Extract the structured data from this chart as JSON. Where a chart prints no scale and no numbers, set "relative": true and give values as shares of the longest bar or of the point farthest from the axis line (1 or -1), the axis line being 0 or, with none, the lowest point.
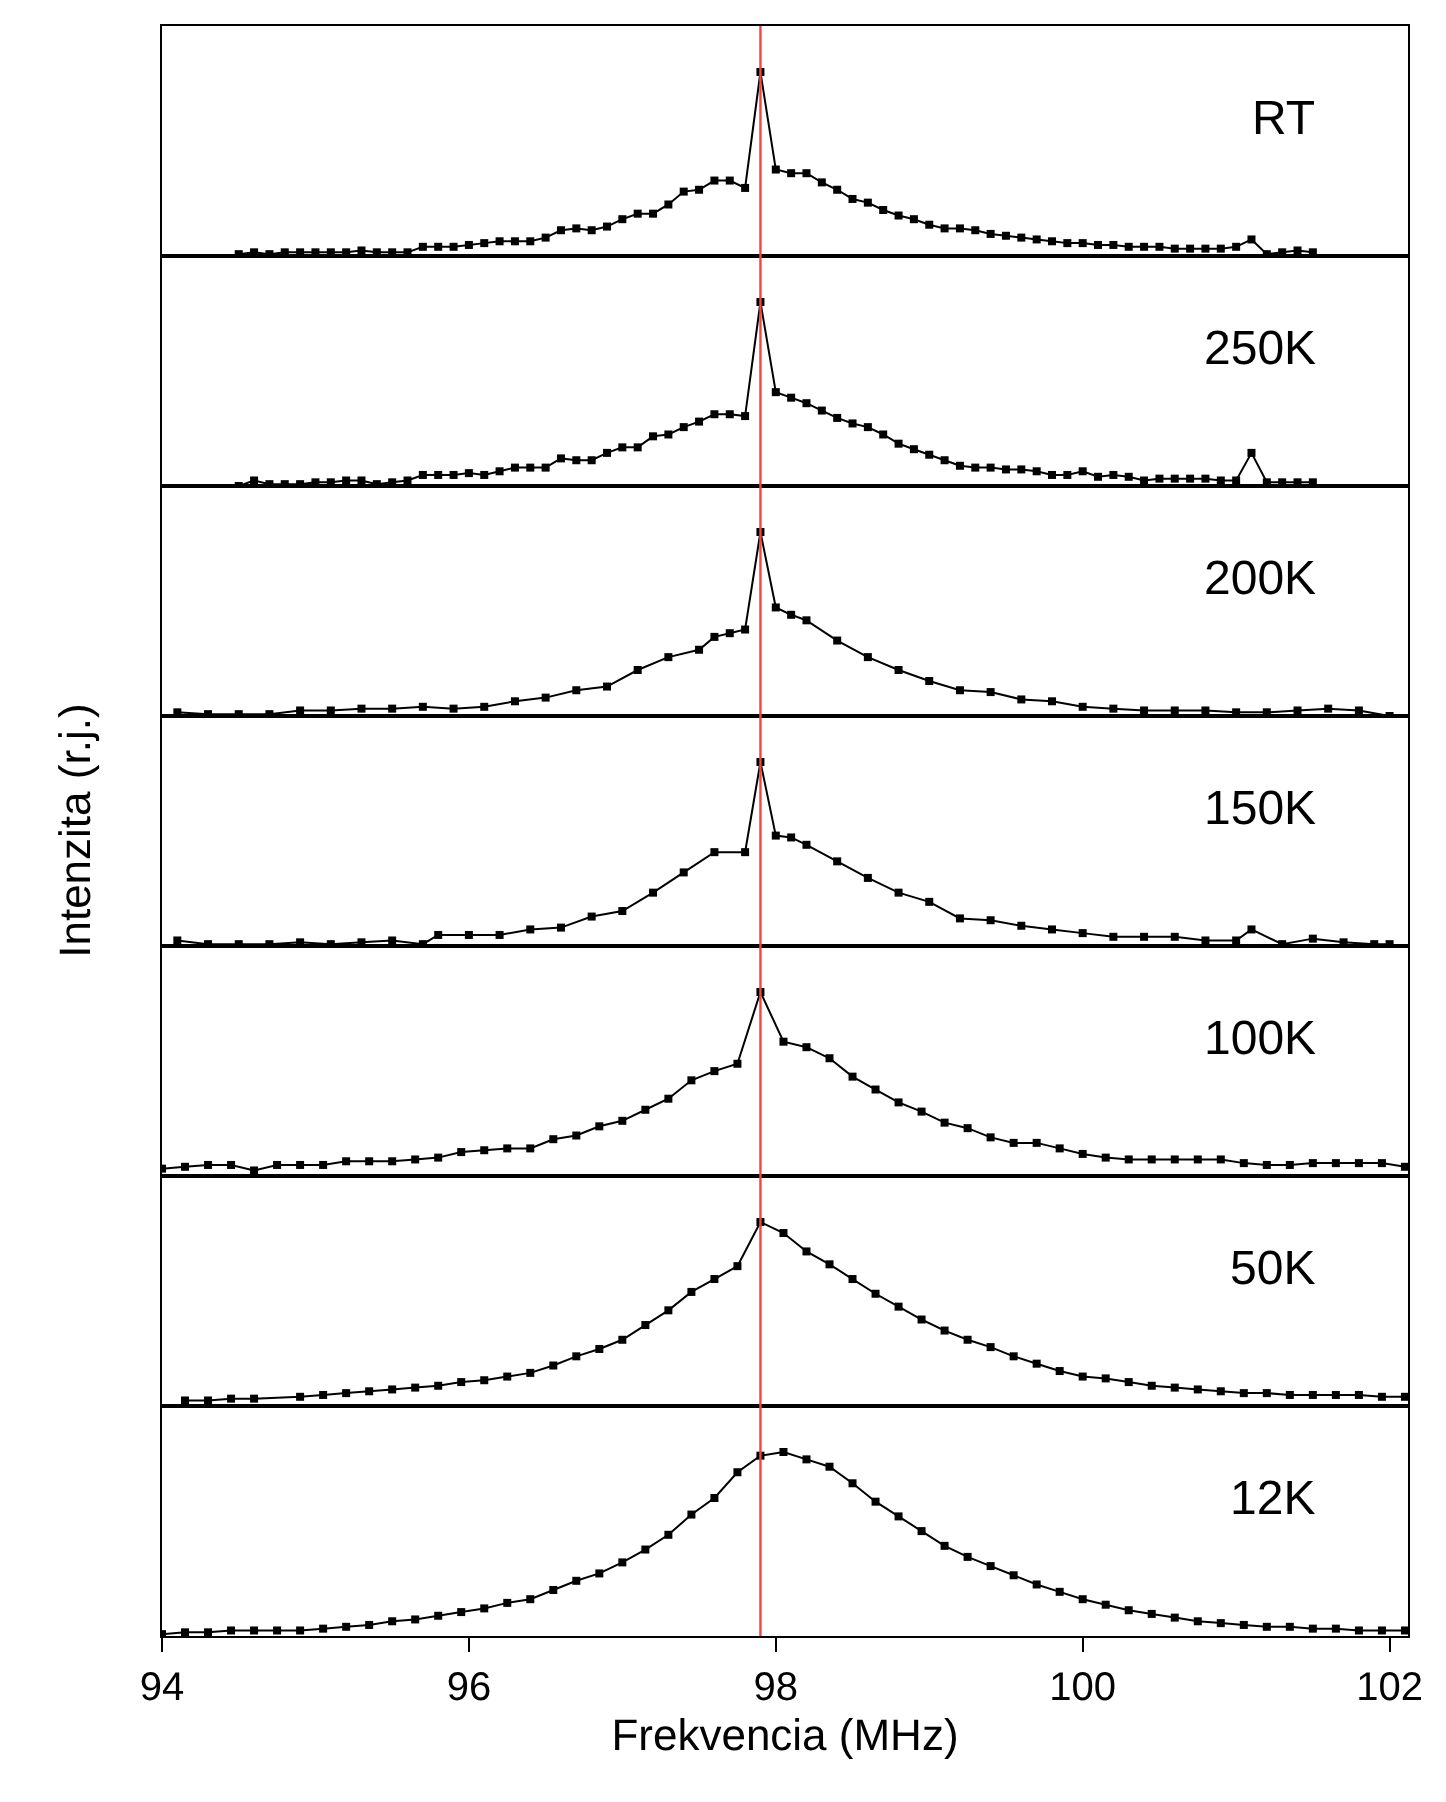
{
  "chart_data": [
    {
      "type": "line",
      "relative": true,
      "marker": "square",
      "tick_labels": false,
      "xlim": [
        94,
        102.12
      ],
      "ref_lines": [
        {
          "axis": "x",
          "value": 97.9,
          "color": "#ff4040"
        }
      ],
      "series": [
        {
          "name": "RT",
          "color": "#000000",
          "x": [
            94.5,
            94.6,
            94.7,
            94.8,
            94.9,
            95.0,
            95.1,
            95.2,
            95.3,
            95.4,
            95.5,
            95.6,
            95.7,
            95.8,
            95.9,
            96.0,
            96.1,
            96.2,
            96.3,
            96.4,
            96.5,
            96.6,
            96.7,
            96.8,
            96.9,
            97.0,
            97.1,
            97.2,
            97.3,
            97.4,
            97.5,
            97.6,
            97.7,
            97.8,
            97.9,
            98.0,
            98.1,
            98.2,
            98.3,
            98.4,
            98.5,
            98.6,
            98.7,
            98.8,
            98.9,
            99.0,
            99.1,
            99.2,
            99.3,
            99.4,
            99.5,
            99.6,
            99.7,
            99.8,
            99.9,
            100.0,
            100.1,
            100.2,
            100.3,
            100.4,
            100.5,
            100.6,
            100.7,
            100.8,
            100.9,
            101.0,
            101.1,
            101.2,
            101.3,
            101.4,
            101.5
          ],
          "values": [
            0.01,
            0.02,
            0.01,
            0.02,
            0.02,
            0.02,
            0.02,
            0.02,
            0.03,
            0.02,
            0.02,
            0.02,
            0.05,
            0.05,
            0.05,
            0.06,
            0.07,
            0.08,
            0.08,
            0.08,
            0.1,
            0.14,
            0.15,
            0.14,
            0.16,
            0.2,
            0.23,
            0.23,
            0.28,
            0.35,
            0.36,
            0.41,
            0.41,
            0.37,
            1,
            0.47,
            0.45,
            0.45,
            0.4,
            0.36,
            0.31,
            0.29,
            0.25,
            0.22,
            0.2,
            0.17,
            0.15,
            0.15,
            0.14,
            0.12,
            0.11,
            0.1,
            0.09,
            0.08,
            0.07,
            0.07,
            0.06,
            0.06,
            0.05,
            0.05,
            0.05,
            0.04,
            0.04,
            0.04,
            0.04,
            0.05,
            0.09,
            0.01,
            0.02,
            0.03,
            0.02
          ]
        }
      ]
    },
    {
      "type": "line",
      "relative": true,
      "marker": "square",
      "tick_labels": false,
      "xlim": [
        94,
        102.12
      ],
      "ref_lines": [
        {
          "axis": "x",
          "value": 97.9,
          "color": "#ff4040"
        }
      ],
      "series": [
        {
          "name": "250K",
          "color": "#000000",
          "x": [
            94.5,
            94.6,
            94.7,
            94.8,
            94.9,
            95.0,
            95.1,
            95.2,
            95.3,
            95.4,
            95.5,
            95.6,
            95.7,
            95.8,
            95.9,
            96.0,
            96.1,
            96.2,
            96.3,
            96.4,
            96.5,
            96.6,
            96.7,
            96.8,
            96.9,
            97.0,
            97.1,
            97.2,
            97.3,
            97.4,
            97.5,
            97.6,
            97.7,
            97.8,
            97.9,
            98.0,
            98.1,
            98.2,
            98.3,
            98.4,
            98.5,
            98.6,
            98.7,
            98.8,
            98.9,
            99.0,
            99.1,
            99.2,
            99.3,
            99.4,
            99.5,
            99.6,
            99.7,
            99.8,
            99.9,
            100.0,
            100.1,
            100.2,
            100.3,
            100.4,
            100.5,
            100.6,
            100.7,
            100.8,
            100.9,
            101.0,
            101.1,
            101.2,
            101.3,
            101.4,
            101.5
          ],
          "values": [
            0.0,
            0.03,
            0.01,
            0.01,
            0.01,
            0.02,
            0.02,
            0.03,
            0.03,
            0.01,
            0.02,
            0.03,
            0.06,
            0.06,
            0.06,
            0.07,
            0.06,
            0.08,
            0.1,
            0.1,
            0.1,
            0.15,
            0.14,
            0.14,
            0.18,
            0.21,
            0.21,
            0.27,
            0.28,
            0.32,
            0.35,
            0.39,
            0.39,
            0.38,
            1,
            0.51,
            0.48,
            0.45,
            0.41,
            0.37,
            0.34,
            0.32,
            0.28,
            0.23,
            0.2,
            0.17,
            0.14,
            0.11,
            0.1,
            0.1,
            0.09,
            0.09,
            0.08,
            0.06,
            0.06,
            0.08,
            0.05,
            0.06,
            0.05,
            0.03,
            0.04,
            0.04,
            0.04,
            0.04,
            0.03,
            0.03,
            0.18,
            0.02,
            0.02,
            0.02,
            0.02
          ]
        }
      ]
    },
    {
      "type": "line",
      "relative": true,
      "marker": "square",
      "tick_labels": false,
      "xlim": [
        94,
        102.12
      ],
      "ref_lines": [
        {
          "axis": "x",
          "value": 97.9,
          "color": "#ff4040"
        }
      ],
      "series": [
        {
          "name": "200K",
          "color": "#000000",
          "x": [
            94.1,
            94.3,
            94.5,
            94.7,
            94.9,
            95.1,
            95.3,
            95.5,
            95.7,
            95.9,
            96.1,
            96.3,
            96.5,
            96.7,
            96.9,
            97.1,
            97.3,
            97.5,
            97.6,
            97.7,
            97.8,
            97.9,
            98.0,
            98.1,
            98.2,
            98.4,
            98.6,
            98.8,
            99.0,
            99.2,
            99.4,
            99.6,
            99.8,
            100.0,
            100.2,
            100.4,
            100.6,
            100.8,
            101.0,
            101.2,
            101.4,
            101.6,
            101.8,
            102.0
          ],
          "values": [
            0.02,
            0.01,
            0.01,
            0.01,
            0.03,
            0.03,
            0.04,
            0.04,
            0.05,
            0.04,
            0.05,
            0.08,
            0.1,
            0.14,
            0.16,
            0.25,
            0.32,
            0.36,
            0.43,
            0.45,
            0.47,
            1,
            0.59,
            0.55,
            0.52,
            0.41,
            0.32,
            0.25,
            0.19,
            0.14,
            0.13,
            0.09,
            0.08,
            0.05,
            0.04,
            0.03,
            0.03,
            0.03,
            0.02,
            0.02,
            0.03,
            0.04,
            0.03,
            0.0
          ]
        }
      ]
    },
    {
      "type": "line",
      "relative": true,
      "marker": "square",
      "tick_labels": false,
      "xlim": [
        94,
        102.12
      ],
      "ylabel": "Intenzita (r.j.)",
      "ref_lines": [
        {
          "axis": "x",
          "value": 97.9,
          "color": "#ff4040"
        }
      ],
      "series": [
        {
          "name": "150K",
          "color": "#000000",
          "x": [
            94.1,
            94.3,
            94.5,
            94.7,
            94.9,
            95.1,
            95.3,
            95.5,
            95.7,
            95.8,
            96.0,
            96.2,
            96.4,
            96.6,
            96.8,
            97.0,
            97.2,
            97.4,
            97.6,
            97.8,
            97.9,
            98.0,
            98.1,
            98.2,
            98.4,
            98.6,
            98.8,
            99.0,
            99.2,
            99.4,
            99.6,
            99.8,
            100.0,
            100.2,
            100.4,
            100.6,
            100.8,
            101.0,
            101.1,
            101.3,
            101.5,
            101.7,
            101.9,
            102.0
          ],
          "values": [
            0.03,
            0.01,
            0.01,
            0.01,
            0.02,
            0.01,
            0.02,
            0.03,
            0.01,
            0.06,
            0.06,
            0.06,
            0.09,
            0.1,
            0.16,
            0.19,
            0.29,
            0.4,
            0.51,
            0.51,
            1,
            0.6,
            0.59,
            0.55,
            0.46,
            0.37,
            0.29,
            0.24,
            0.15,
            0.14,
            0.11,
            0.09,
            0.07,
            0.05,
            0.05,
            0.05,
            0.03,
            0.03,
            0.09,
            0.01,
            0.04,
            0.02,
            0.01,
            0.01
          ]
        }
      ]
    },
    {
      "type": "line",
      "relative": true,
      "marker": "square",
      "tick_labels": false,
      "xlim": [
        94,
        102.12
      ],
      "ref_lines": [
        {
          "axis": "x",
          "value": 97.9,
          "color": "#ff4040"
        }
      ],
      "series": [
        {
          "name": "100K",
          "color": "#000000",
          "x": [
            94.0,
            94.15,
            94.3,
            94.45,
            94.6,
            94.75,
            94.9,
            95.05,
            95.2,
            95.35,
            95.5,
            95.65,
            95.8,
            95.95,
            96.1,
            96.25,
            96.4,
            96.55,
            96.7,
            96.85,
            97.0,
            97.15,
            97.3,
            97.45,
            97.6,
            97.75,
            97.9,
            98.05,
            98.2,
            98.35,
            98.5,
            98.65,
            98.8,
            98.95,
            99.1,
            99.25,
            99.4,
            99.55,
            99.7,
            99.85,
            100.0,
            100.15,
            100.3,
            100.45,
            100.6,
            100.75,
            100.9,
            101.05,
            101.2,
            101.35,
            101.5,
            101.65,
            101.8,
            101.95,
            102.1
          ],
          "values": [
            0.04,
            0.05,
            0.06,
            0.06,
            0.03,
            0.06,
            0.06,
            0.06,
            0.08,
            0.08,
            0.08,
            0.09,
            0.1,
            0.13,
            0.14,
            0.15,
            0.15,
            0.2,
            0.22,
            0.27,
            0.3,
            0.36,
            0.42,
            0.52,
            0.57,
            0.61,
            1,
            0.73,
            0.7,
            0.64,
            0.54,
            0.47,
            0.4,
            0.35,
            0.29,
            0.26,
            0.21,
            0.18,
            0.18,
            0.15,
            0.12,
            0.1,
            0.09,
            0.09,
            0.09,
            0.09,
            0.09,
            0.07,
            0.06,
            0.06,
            0.07,
            0.07,
            0.07,
            0.07,
            0.05
          ]
        }
      ]
    },
    {
      "type": "line",
      "relative": true,
      "marker": "square",
      "tick_labels": false,
      "xlim": [
        94,
        102.12
      ],
      "ref_lines": [
        {
          "axis": "x",
          "value": 97.9,
          "color": "#ff4040"
        }
      ],
      "series": [
        {
          "name": "50K",
          "color": "#000000",
          "x": [
            94.15,
            94.3,
            94.45,
            94.6,
            94.9,
            95.05,
            95.2,
            95.35,
            95.5,
            95.65,
            95.8,
            95.95,
            96.1,
            96.25,
            96.4,
            96.55,
            96.7,
            96.85,
            97.0,
            97.15,
            97.3,
            97.45,
            97.6,
            97.75,
            97.9,
            98.05,
            98.2,
            98.35,
            98.5,
            98.65,
            98.8,
            98.95,
            99.1,
            99.25,
            99.4,
            99.55,
            99.7,
            99.85,
            100.0,
            100.15,
            100.3,
            100.45,
            100.6,
            100.75,
            100.9,
            101.05,
            101.2,
            101.35,
            101.5,
            101.65,
            101.8,
            101.95,
            102.1
          ],
          "values": [
            0.03,
            0.03,
            0.04,
            0.04,
            0.05,
            0.06,
            0.07,
            0.08,
            0.09,
            0.1,
            0.11,
            0.13,
            0.14,
            0.16,
            0.18,
            0.22,
            0.27,
            0.31,
            0.36,
            0.44,
            0.52,
            0.62,
            0.69,
            0.76,
            1,
            0.94,
            0.84,
            0.77,
            0.69,
            0.61,
            0.54,
            0.47,
            0.41,
            0.36,
            0.32,
            0.27,
            0.23,
            0.19,
            0.16,
            0.15,
            0.13,
            0.11,
            0.1,
            0.09,
            0.08,
            0.07,
            0.07,
            0.06,
            0.06,
            0.06,
            0.06,
            0.05,
            0.05
          ]
        }
      ]
    },
    {
      "type": "line",
      "relative": true,
      "marker": "square",
      "xlim": [
        94,
        102.12
      ],
      "xticks": [
        94,
        96,
        98,
        100,
        102
      ],
      "tick_labels": "x",
      "xlabel": "Frekvencia (MHz)",
      "ref_lines": [
        {
          "axis": "x",
          "value": 97.9,
          "color": "#ff4040"
        }
      ],
      "series": [
        {
          "name": "12K",
          "color": "#000000",
          "x": [
            94.0,
            94.15,
            94.3,
            94.45,
            94.6,
            94.75,
            94.9,
            95.05,
            95.2,
            95.35,
            95.5,
            95.65,
            95.8,
            95.95,
            96.1,
            96.25,
            96.4,
            96.55,
            96.7,
            96.85,
            97.0,
            97.15,
            97.3,
            97.45,
            97.6,
            97.75,
            97.9,
            98.05,
            98.2,
            98.35,
            98.5,
            98.65,
            98.8,
            98.95,
            99.1,
            99.25,
            99.4,
            99.55,
            99.7,
            99.85,
            100.0,
            100.15,
            100.3,
            100.45,
            100.6,
            100.75,
            100.9,
            101.05,
            101.2,
            101.35,
            101.5,
            101.65,
            101.8,
            101.95,
            102.1
          ],
          "values": [
            0.01,
            0.02,
            0.02,
            0.03,
            0.03,
            0.03,
            0.03,
            0.04,
            0.05,
            0.06,
            0.08,
            0.09,
            0.11,
            0.13,
            0.15,
            0.18,
            0.2,
            0.25,
            0.3,
            0.34,
            0.4,
            0.47,
            0.55,
            0.66,
            0.75,
            0.89,
            0.98,
            1,
            0.96,
            0.92,
            0.83,
            0.73,
            0.65,
            0.57,
            0.49,
            0.43,
            0.38,
            0.33,
            0.28,
            0.24,
            0.2,
            0.17,
            0.14,
            0.12,
            0.1,
            0.08,
            0.07,
            0.06,
            0.05,
            0.05,
            0.04,
            0.04,
            0.03,
            0.03,
            0.03
          ]
        }
      ]
    }
  ]
}
